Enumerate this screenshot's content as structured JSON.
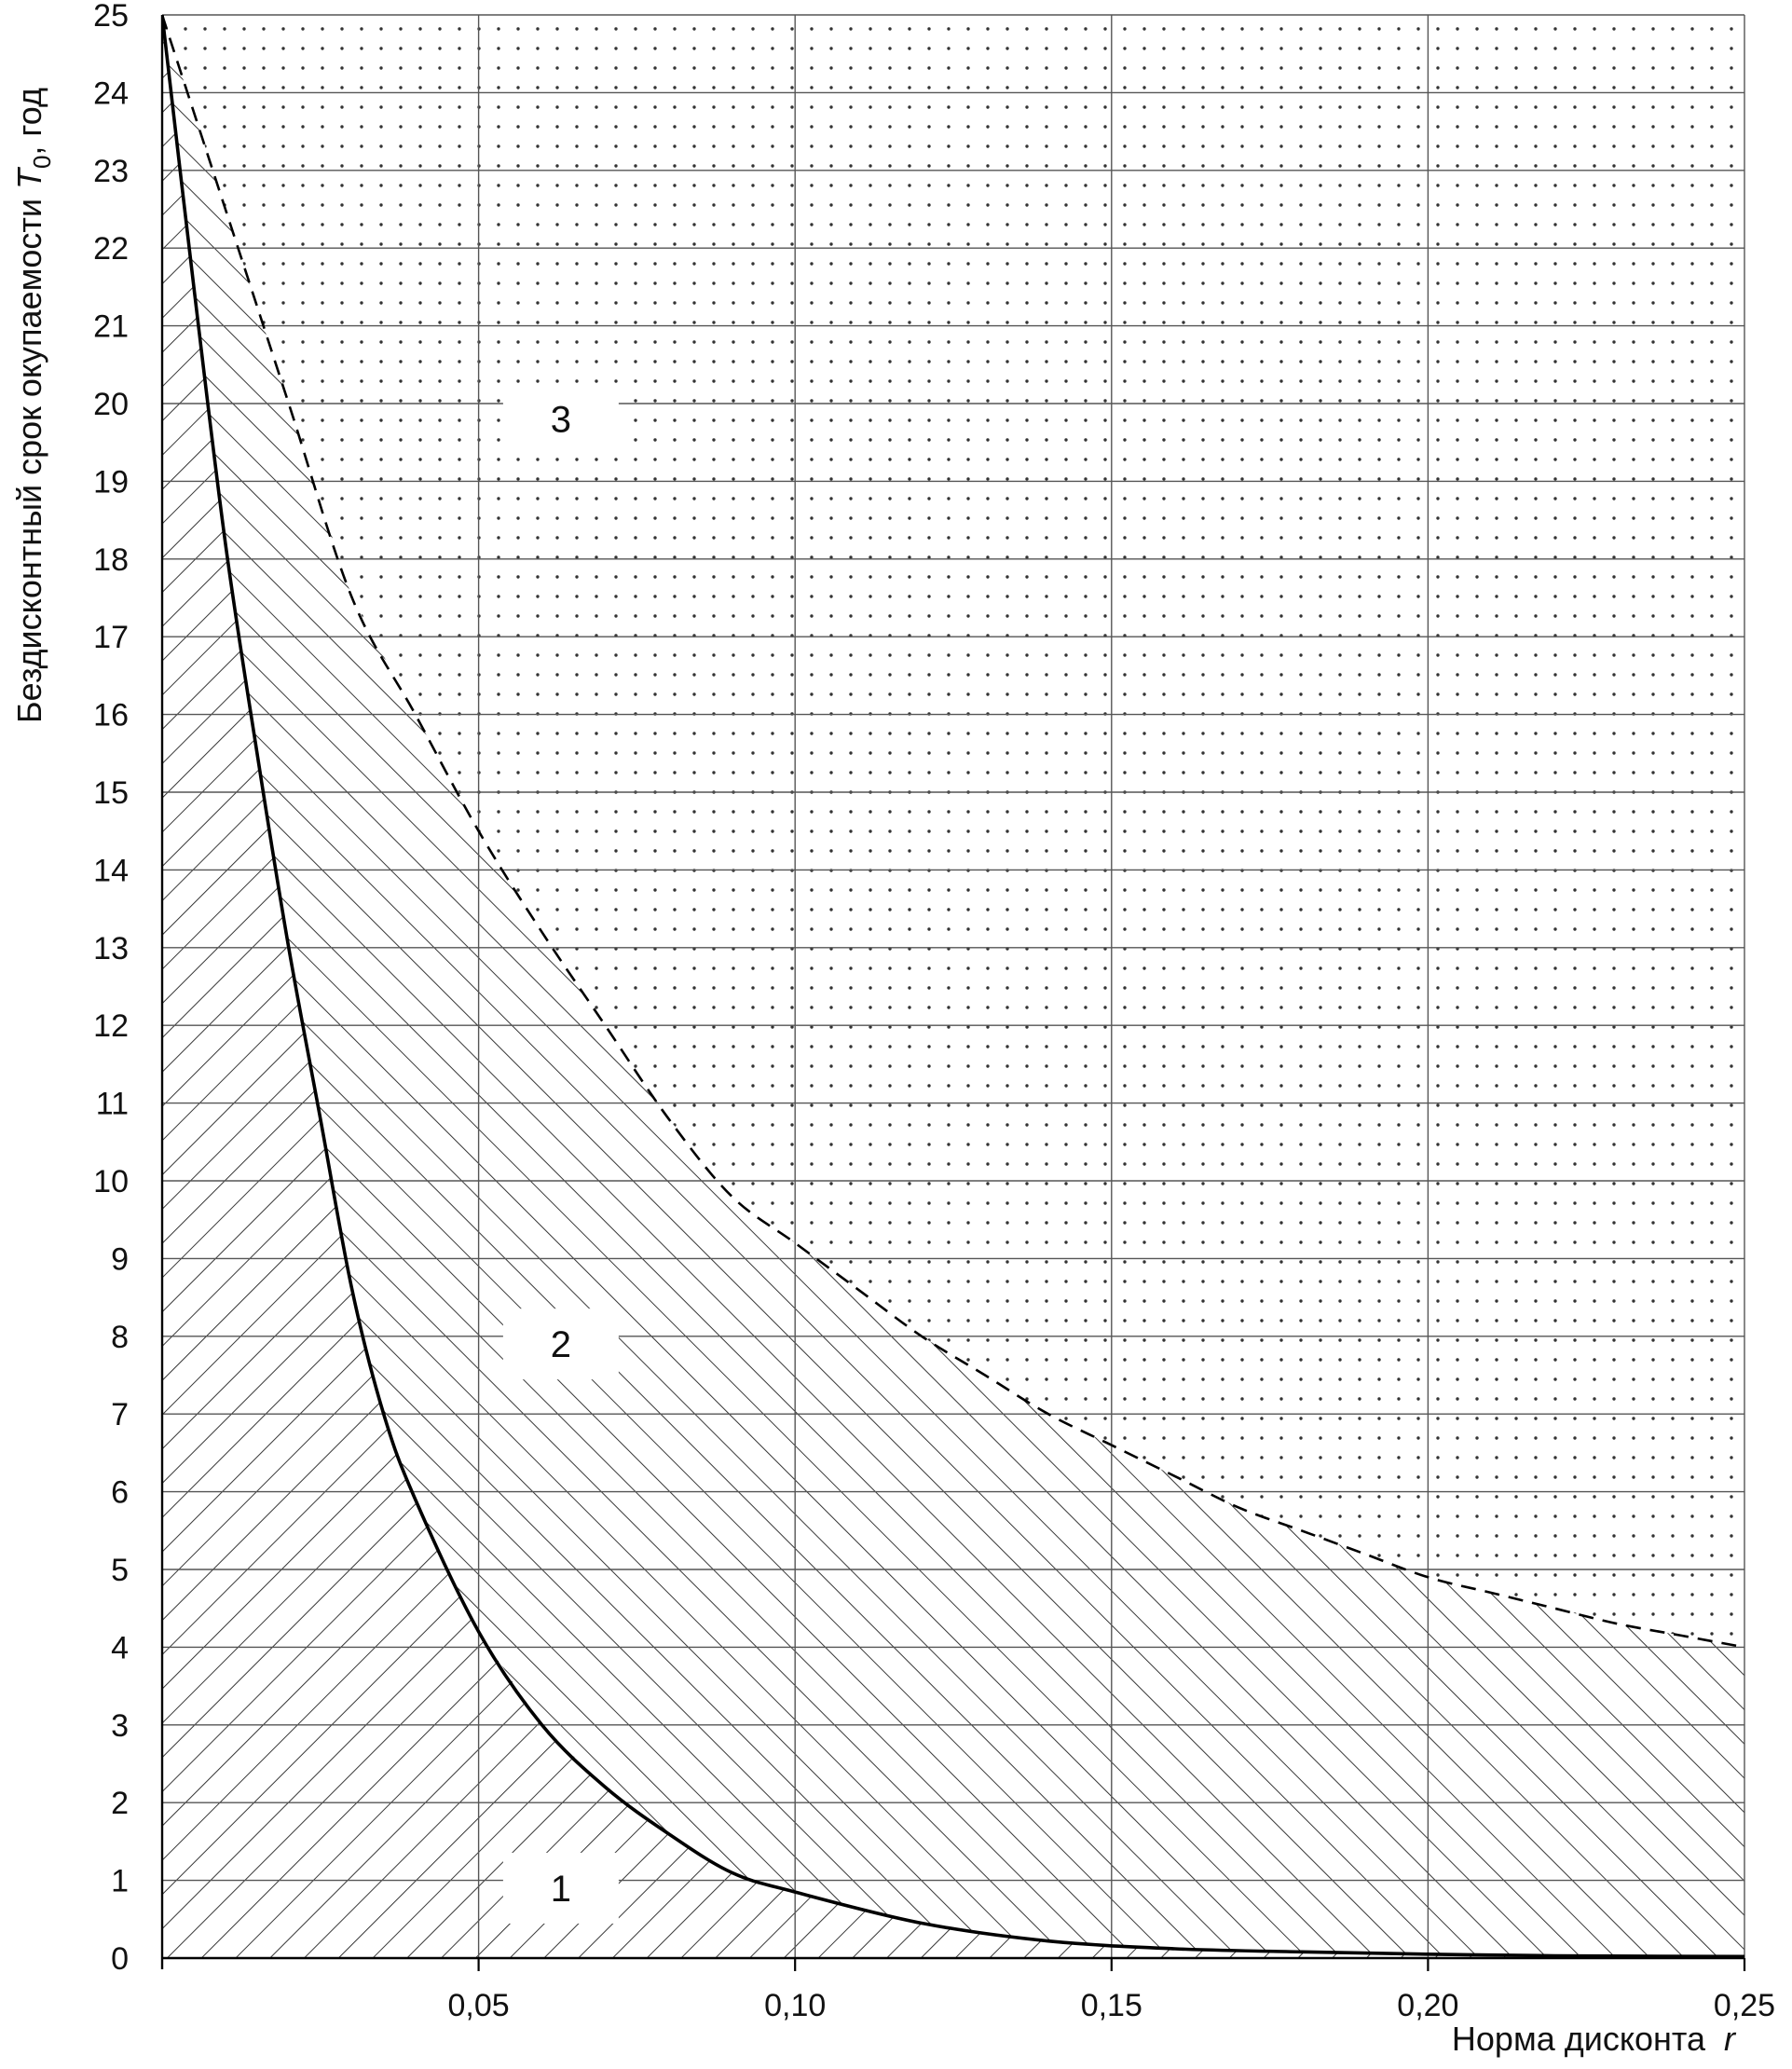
{
  "chart_data": {
    "type": "line",
    "title": "",
    "xlabel": "Норма дисконта",
    "xlabel_var": "r",
    "ylabel": "Бездисконтный срок окупаемости",
    "ylabel_var": "T",
    "ylabel_sub": "0",
    "ylabel_unit": ", год",
    "xlim": [
      0,
      0.25
    ],
    "ylim": [
      0,
      25
    ],
    "x_ticks": [
      0.05,
      0.1,
      0.15,
      0.2,
      0.25
    ],
    "x_tick_labels": [
      "0,05",
      "0,10",
      "0,15",
      "0,20",
      "0,25"
    ],
    "y_ticks": [
      0,
      1,
      2,
      3,
      4,
      5,
      6,
      7,
      8,
      9,
      10,
      11,
      12,
      13,
      14,
      15,
      16,
      17,
      18,
      19,
      20,
      21,
      22,
      23,
      24,
      25
    ],
    "y_tick_labels": [
      "0",
      "1",
      "2",
      "3",
      "4",
      "5",
      "6",
      "7",
      "8",
      "9",
      "10",
      "11",
      "12",
      "13",
      "14",
      "15",
      "16",
      "17",
      "18",
      "19",
      "20",
      "21",
      "22",
      "23",
      "24",
      "25"
    ],
    "grid": true,
    "series": [
      {
        "style": "solid",
        "x": [
          0.0,
          0.005,
          0.01,
          0.015,
          0.02,
          0.025,
          0.03,
          0.035,
          0.04,
          0.05,
          0.06,
          0.07,
          0.08,
          0.09,
          0.1,
          0.12,
          0.14,
          0.16,
          0.18,
          0.2,
          0.22,
          0.25
        ],
        "y": [
          25,
          21.5,
          18.2,
          15.5,
          13.0,
          10.8,
          8.6,
          7.0,
          5.9,
          4.2,
          3.0,
          2.2,
          1.6,
          1.1,
          0.85,
          0.45,
          0.22,
          0.12,
          0.08,
          0.05,
          0.03,
          0.02
        ]
      },
      {
        "style": "dashed",
        "x": [
          0.0,
          0.01,
          0.02,
          0.03,
          0.04,
          0.05,
          0.06,
          0.07,
          0.08,
          0.09,
          0.1,
          0.11,
          0.12,
          0.13,
          0.14,
          0.15,
          0.16,
          0.17,
          0.18,
          0.19,
          0.2,
          0.21,
          0.22,
          0.23,
          0.24,
          0.25
        ],
        "y": [
          25,
          22.5,
          20.0,
          17.5,
          16.0,
          14.5,
          13.2,
          12.0,
          10.8,
          9.8,
          9.2,
          8.6,
          8.0,
          7.5,
          7.0,
          6.6,
          6.2,
          5.8,
          5.5,
          5.2,
          4.9,
          4.7,
          4.5,
          4.3,
          4.15,
          4.0
        ]
      }
    ],
    "regions": [
      {
        "label": "1",
        "at": [
          0.063,
          0.9
        ]
      },
      {
        "label": "2",
        "at": [
          0.063,
          7.9
        ]
      },
      {
        "label": "3",
        "at": [
          0.063,
          19.8
        ]
      }
    ]
  }
}
